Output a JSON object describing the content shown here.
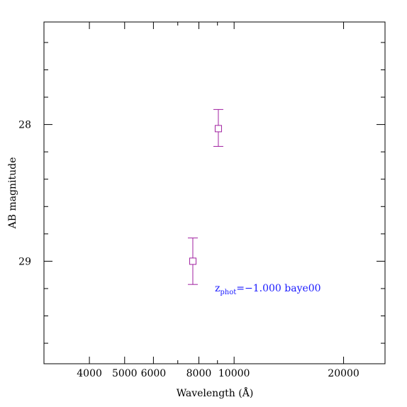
{
  "chart_data": {
    "type": "scatter",
    "title": "",
    "xlabel": "Wavelength (Å)",
    "ylabel": "AB magnitude",
    "x_scale": "log",
    "xlim": [
      3000,
      26000
    ],
    "ylim": [
      29.75,
      27.25
    ],
    "y_inverted": true,
    "x_major_ticks": [
      4000,
      5000,
      6000,
      8000,
      10000,
      20000
    ],
    "x_major_tick_labels": [
      "4000",
      "5000",
      "6000",
      "8000",
      "10000",
      "20000"
    ],
    "x_minor_ticks": [
      3000,
      7000,
      9000
    ],
    "y_major_ticks": [
      28,
      29
    ],
    "y_major_tick_labels": [
      "28",
      "29"
    ],
    "y_minor_ticks": [
      27.4,
      27.6,
      27.8,
      28.2,
      28.4,
      28.6,
      28.8,
      29.2,
      29.4,
      29.6
    ],
    "grid": false,
    "series": [
      {
        "marker": "open-square",
        "color": "#a020a0",
        "points": [
          {
            "x": 7700,
            "y": 29.0,
            "yerr_low": 0.17,
            "yerr_high": 0.17
          },
          {
            "x": 9050,
            "y": 28.03,
            "yerr_low": 0.13,
            "yerr_high": 0.14
          }
        ]
      }
    ],
    "annotation": {
      "text_main": "z",
      "text_sub": "phot",
      "text_rest": "=−1.000 baye00",
      "color": "#1a1aff"
    }
  }
}
